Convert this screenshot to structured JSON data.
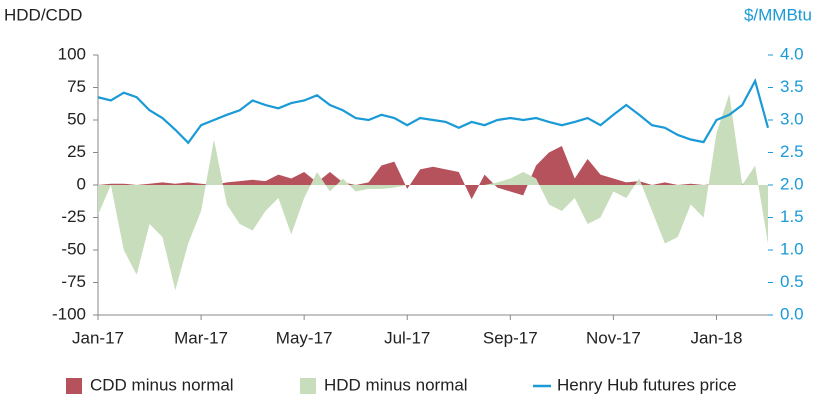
{
  "chart_data": {
    "type": "combo",
    "y_label": "HDD/CDD",
    "y2_label": "$/MMBtu",
    "categories": [
      "Jan-17",
      null,
      null,
      null,
      null,
      null,
      null,
      null,
      "Mar-17",
      null,
      null,
      null,
      null,
      null,
      null,
      null,
      "May-17",
      null,
      null,
      null,
      null,
      null,
      null,
      null,
      "Jul-17",
      null,
      null,
      null,
      null,
      null,
      null,
      null,
      "Sep-17",
      null,
      null,
      null,
      null,
      null,
      null,
      null,
      "Nov-17",
      null,
      null,
      null,
      null,
      null,
      null,
      null,
      "Jan-18",
      null,
      null,
      null,
      null
    ],
    "series": [
      {
        "name": "CDD minus normal",
        "type": "area",
        "color": "#b5525c",
        "axis": "y",
        "values": [
          0,
          1,
          1,
          0,
          1,
          2,
          1,
          2,
          1,
          0,
          2,
          3,
          4,
          3,
          8,
          5,
          10,
          2,
          10,
          2,
          0,
          2,
          15,
          18,
          -3,
          12,
          14,
          12,
          10,
          -11,
          8,
          -2,
          -5,
          -8,
          15,
          25,
          30,
          5,
          20,
          8,
          5,
          2,
          3,
          0,
          2,
          0,
          1,
          0,
          1,
          0,
          1,
          0,
          0
        ]
      },
      {
        "name": "HDD minus normal",
        "type": "area",
        "color": "#c8ddbb",
        "axis": "y",
        "values": [
          -23,
          0,
          -50,
          -69,
          -30,
          -40,
          -81,
          -45,
          -20,
          35,
          -15,
          -30,
          -35,
          -20,
          -10,
          -38,
          -10,
          10,
          -5,
          5,
          -5,
          -3,
          -3,
          -2,
          0,
          0,
          0,
          0,
          0,
          0,
          0,
          2,
          5,
          10,
          5,
          -15,
          -20,
          -10,
          -30,
          -25,
          -5,
          -10,
          5,
          -20,
          -45,
          -40,
          -15,
          -25,
          40,
          70,
          0,
          15,
          -45
        ]
      },
      {
        "name": "Henry Hub futures price",
        "type": "line",
        "color": "#1a9ad6",
        "axis": "y2",
        "values": [
          3.35,
          3.3,
          3.42,
          3.35,
          3.15,
          3.03,
          2.85,
          2.65,
          2.92,
          3.0,
          3.08,
          3.15,
          3.3,
          3.23,
          3.18,
          3.26,
          3.3,
          3.38,
          3.23,
          3.15,
          3.03,
          3.0,
          3.08,
          3.03,
          2.92,
          3.03,
          3.0,
          2.97,
          2.88,
          2.97,
          2.92,
          3.0,
          3.03,
          3.0,
          3.03,
          2.97,
          2.92,
          2.97,
          3.03,
          2.92,
          3.08,
          3.23,
          3.08,
          2.92,
          2.88,
          2.77,
          2.7,
          2.66,
          3.0,
          3.08,
          3.23,
          3.6,
          2.88
        ]
      }
    ],
    "ylim": [
      -100,
      100
    ],
    "yticks": [
      100,
      75,
      50,
      25,
      0,
      -25,
      -50,
      -75,
      -100
    ],
    "y2lim": [
      0,
      4
    ],
    "y2ticks": [
      {
        "value": 4,
        "label": "4.0"
      },
      {
        "value": 3.5,
        "label": "3.5"
      },
      {
        "value": 3,
        "label": "3.0"
      },
      {
        "value": 2.5,
        "label": "2.5"
      },
      {
        "value": 2,
        "label": "2.0"
      },
      {
        "value": 1.5,
        "label": "1.5"
      },
      {
        "value": 1,
        "label": "1.0"
      },
      {
        "value": 0.5,
        "label": "0.5"
      },
      {
        "value": 0,
        "label": "0.0"
      }
    ],
    "legend": "bottom"
  }
}
